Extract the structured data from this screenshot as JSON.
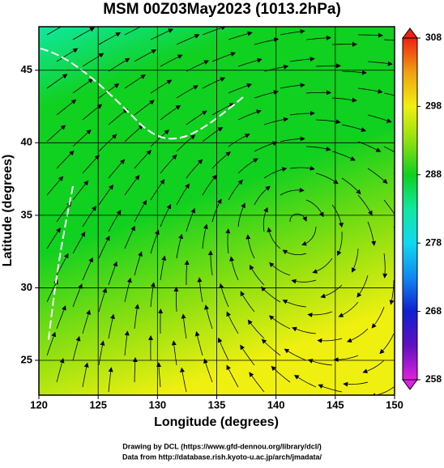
{
  "chart_data": {
    "type": "map",
    "title": "MSM 00Z03May2023 (1013.2hPa)",
    "xlabel": "Longitude (degrees)",
    "ylabel": "Latitude  (degrees)",
    "xlim": [
      120,
      150
    ],
    "ylim": [
      22.6,
      48
    ],
    "xticks": [
      120,
      125,
      130,
      135,
      140,
      145,
      150
    ],
    "yticks": [
      25,
      30,
      35,
      40,
      45
    ],
    "grid": true,
    "colorbar": {
      "range": [
        258,
        308
      ],
      "ticks": [
        258,
        268,
        278,
        288,
        298,
        308
      ],
      "colors": [
        "#e020e0",
        "#6010c0",
        "#1020d0",
        "#1088f0",
        "#10d8f0",
        "#10e8a0",
        "#10d020",
        "#90e010",
        "#f0f010",
        "#f0a010",
        "#f02010"
      ]
    },
    "footer": [
      "Drawing by DCL (https://www.gfd-dennou.org/library/dcl/)",
      "Data from http://database.rish.kyoto-u.ac.jp/arch/jmadata/"
    ]
  }
}
